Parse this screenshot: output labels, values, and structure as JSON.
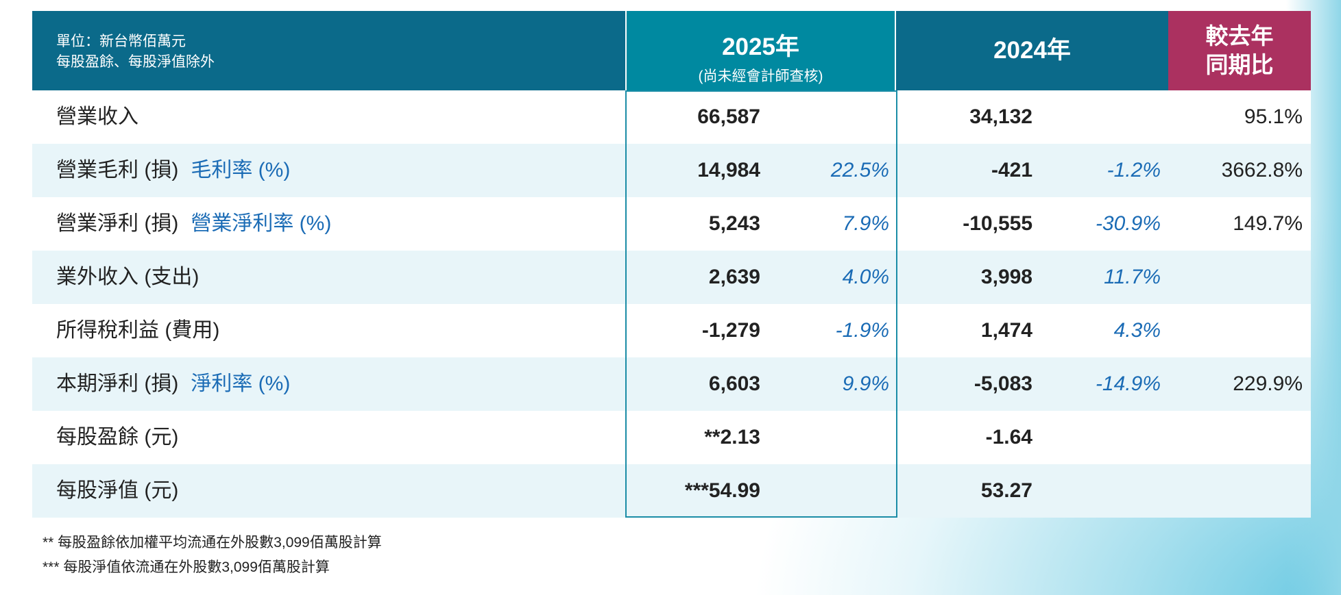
{
  "header": {
    "unit_line1": "單位：新台幣佰萬元",
    "unit_line2": "每股盈餘、每股淨值除外",
    "y2025": "2025年",
    "y2025_note": "(尚未經會計師查核)",
    "y2024": "2024年",
    "yoy_line1": "較去年",
    "yoy_line2": "同期比"
  },
  "rows": [
    {
      "label": "營業收入",
      "sub": "",
      "v25": "66,587",
      "p25": "",
      "v24": "34,132",
      "p24": "",
      "yoy": "95.1%"
    },
    {
      "label": "營業毛利 (損)",
      "sub": "毛利率 (%)",
      "v25": "14,984",
      "p25": "22.5%",
      "v24": "-421",
      "p24": "-1.2%",
      "yoy": "3662.8%"
    },
    {
      "label": "營業淨利 (損)",
      "sub": "營業淨利率 (%)",
      "v25": "5,243",
      "p25": "7.9%",
      "v24": "-10,555",
      "p24": "-30.9%",
      "yoy": "149.7%"
    },
    {
      "label": "業外收入 (支出)",
      "sub": "",
      "v25": "2,639",
      "p25": "4.0%",
      "v24": "3,998",
      "p24": "11.7%",
      "yoy": ""
    },
    {
      "label": "所得稅利益 (費用)",
      "sub": "",
      "v25": "-1,279",
      "p25": "-1.9%",
      "v24": "1,474",
      "p24": "4.3%",
      "yoy": ""
    },
    {
      "label": "本期淨利 (損)",
      "sub": "淨利率 (%)",
      "v25": "6,603",
      "p25": "9.9%",
      "v24": "-5,083",
      "p24": "-14.9%",
      "yoy": "229.9%"
    },
    {
      "label": "每股盈餘 (元)",
      "sub": "",
      "v25": "**2.13",
      "p25": "",
      "v24": "-1.64",
      "p24": "",
      "yoy": ""
    },
    {
      "label": "每股淨值 (元)",
      "sub": "",
      "v25": "***54.99",
      "p25": "",
      "v24": "53.27",
      "p24": "",
      "yoy": ""
    }
  ],
  "footnotes": [
    "** 每股盈餘依加權平均流通在外股數3,099佰萬股計算",
    "*** 每股淨值依流通在外股數3,099佰萬股計算"
  ],
  "colors": {
    "header": "#0b6a8a",
    "header2025": "#0089a0",
    "yoy": "#ab3160",
    "alt_row": "#e8f5f9",
    "accent_text": "#1a6bb5"
  }
}
